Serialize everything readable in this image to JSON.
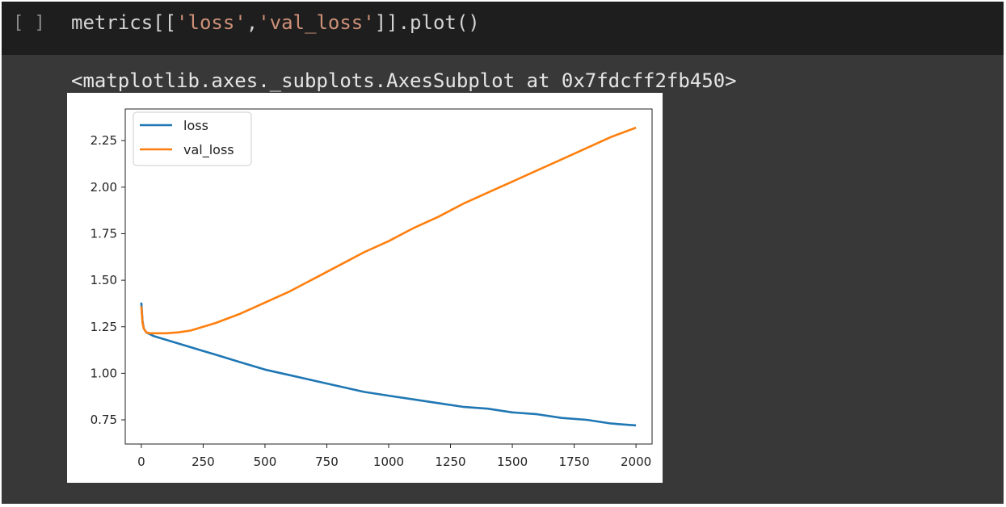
{
  "cell": {
    "run_indicator": "[ ]",
    "code_parts": {
      "p1": "metrics[[",
      "s1": "'loss'",
      "p2": ",",
      "s2": "'val_loss'",
      "p3": "]].plot()"
    },
    "output_text": "<matplotlib.axes._subplots.AxesSubplot at 0x7fdcff2fb450>"
  },
  "colors": {
    "loss": "#1f77b4",
    "val_loss": "#ff7f0e",
    "cell_bg": "#383838",
    "input_bg": "#1e1e1e"
  },
  "chart_data": {
    "type": "line",
    "title": "",
    "xlabel": "",
    "ylabel": "",
    "xlim": [
      -65,
      2065
    ],
    "ylim": [
      0.62,
      2.42
    ],
    "xticks": [
      0,
      250,
      500,
      750,
      1000,
      1250,
      1500,
      1750,
      2000
    ],
    "yticks": [
      0.75,
      1.0,
      1.25,
      1.5,
      1.75,
      2.0,
      2.25
    ],
    "ytick_labels": [
      "0.75",
      "1.00",
      "1.25",
      "1.50",
      "1.75",
      "2.00",
      "2.25"
    ],
    "xtick_labels": [
      "0",
      "250",
      "500",
      "750",
      "1000",
      "1250",
      "1500",
      "1750",
      "2000"
    ],
    "legend_position": "top-left",
    "grid": false,
    "series": [
      {
        "name": "loss",
        "x": [
          0,
          5,
          10,
          20,
          35,
          50,
          75,
          100,
          150,
          200,
          250,
          300,
          400,
          500,
          600,
          700,
          800,
          900,
          1000,
          1100,
          1200,
          1300,
          1400,
          1500,
          1600,
          1700,
          1800,
          1900,
          2000
        ],
        "y": [
          1.38,
          1.28,
          1.24,
          1.22,
          1.21,
          1.2,
          1.19,
          1.18,
          1.16,
          1.14,
          1.12,
          1.1,
          1.06,
          1.02,
          0.99,
          0.96,
          0.93,
          0.9,
          0.88,
          0.86,
          0.84,
          0.82,
          0.81,
          0.79,
          0.78,
          0.76,
          0.75,
          0.73,
          0.72
        ]
      },
      {
        "name": "val_loss",
        "x": [
          0,
          5,
          10,
          20,
          35,
          50,
          75,
          100,
          150,
          200,
          250,
          300,
          400,
          500,
          600,
          700,
          800,
          900,
          1000,
          1100,
          1200,
          1300,
          1400,
          1500,
          1600,
          1700,
          1800,
          1900,
          2000
        ],
        "y": [
          1.36,
          1.27,
          1.24,
          1.22,
          1.215,
          1.215,
          1.215,
          1.215,
          1.22,
          1.23,
          1.25,
          1.27,
          1.32,
          1.38,
          1.44,
          1.51,
          1.58,
          1.65,
          1.71,
          1.78,
          1.84,
          1.91,
          1.97,
          2.03,
          2.09,
          2.15,
          2.21,
          2.27,
          2.32
        ]
      }
    ]
  }
}
